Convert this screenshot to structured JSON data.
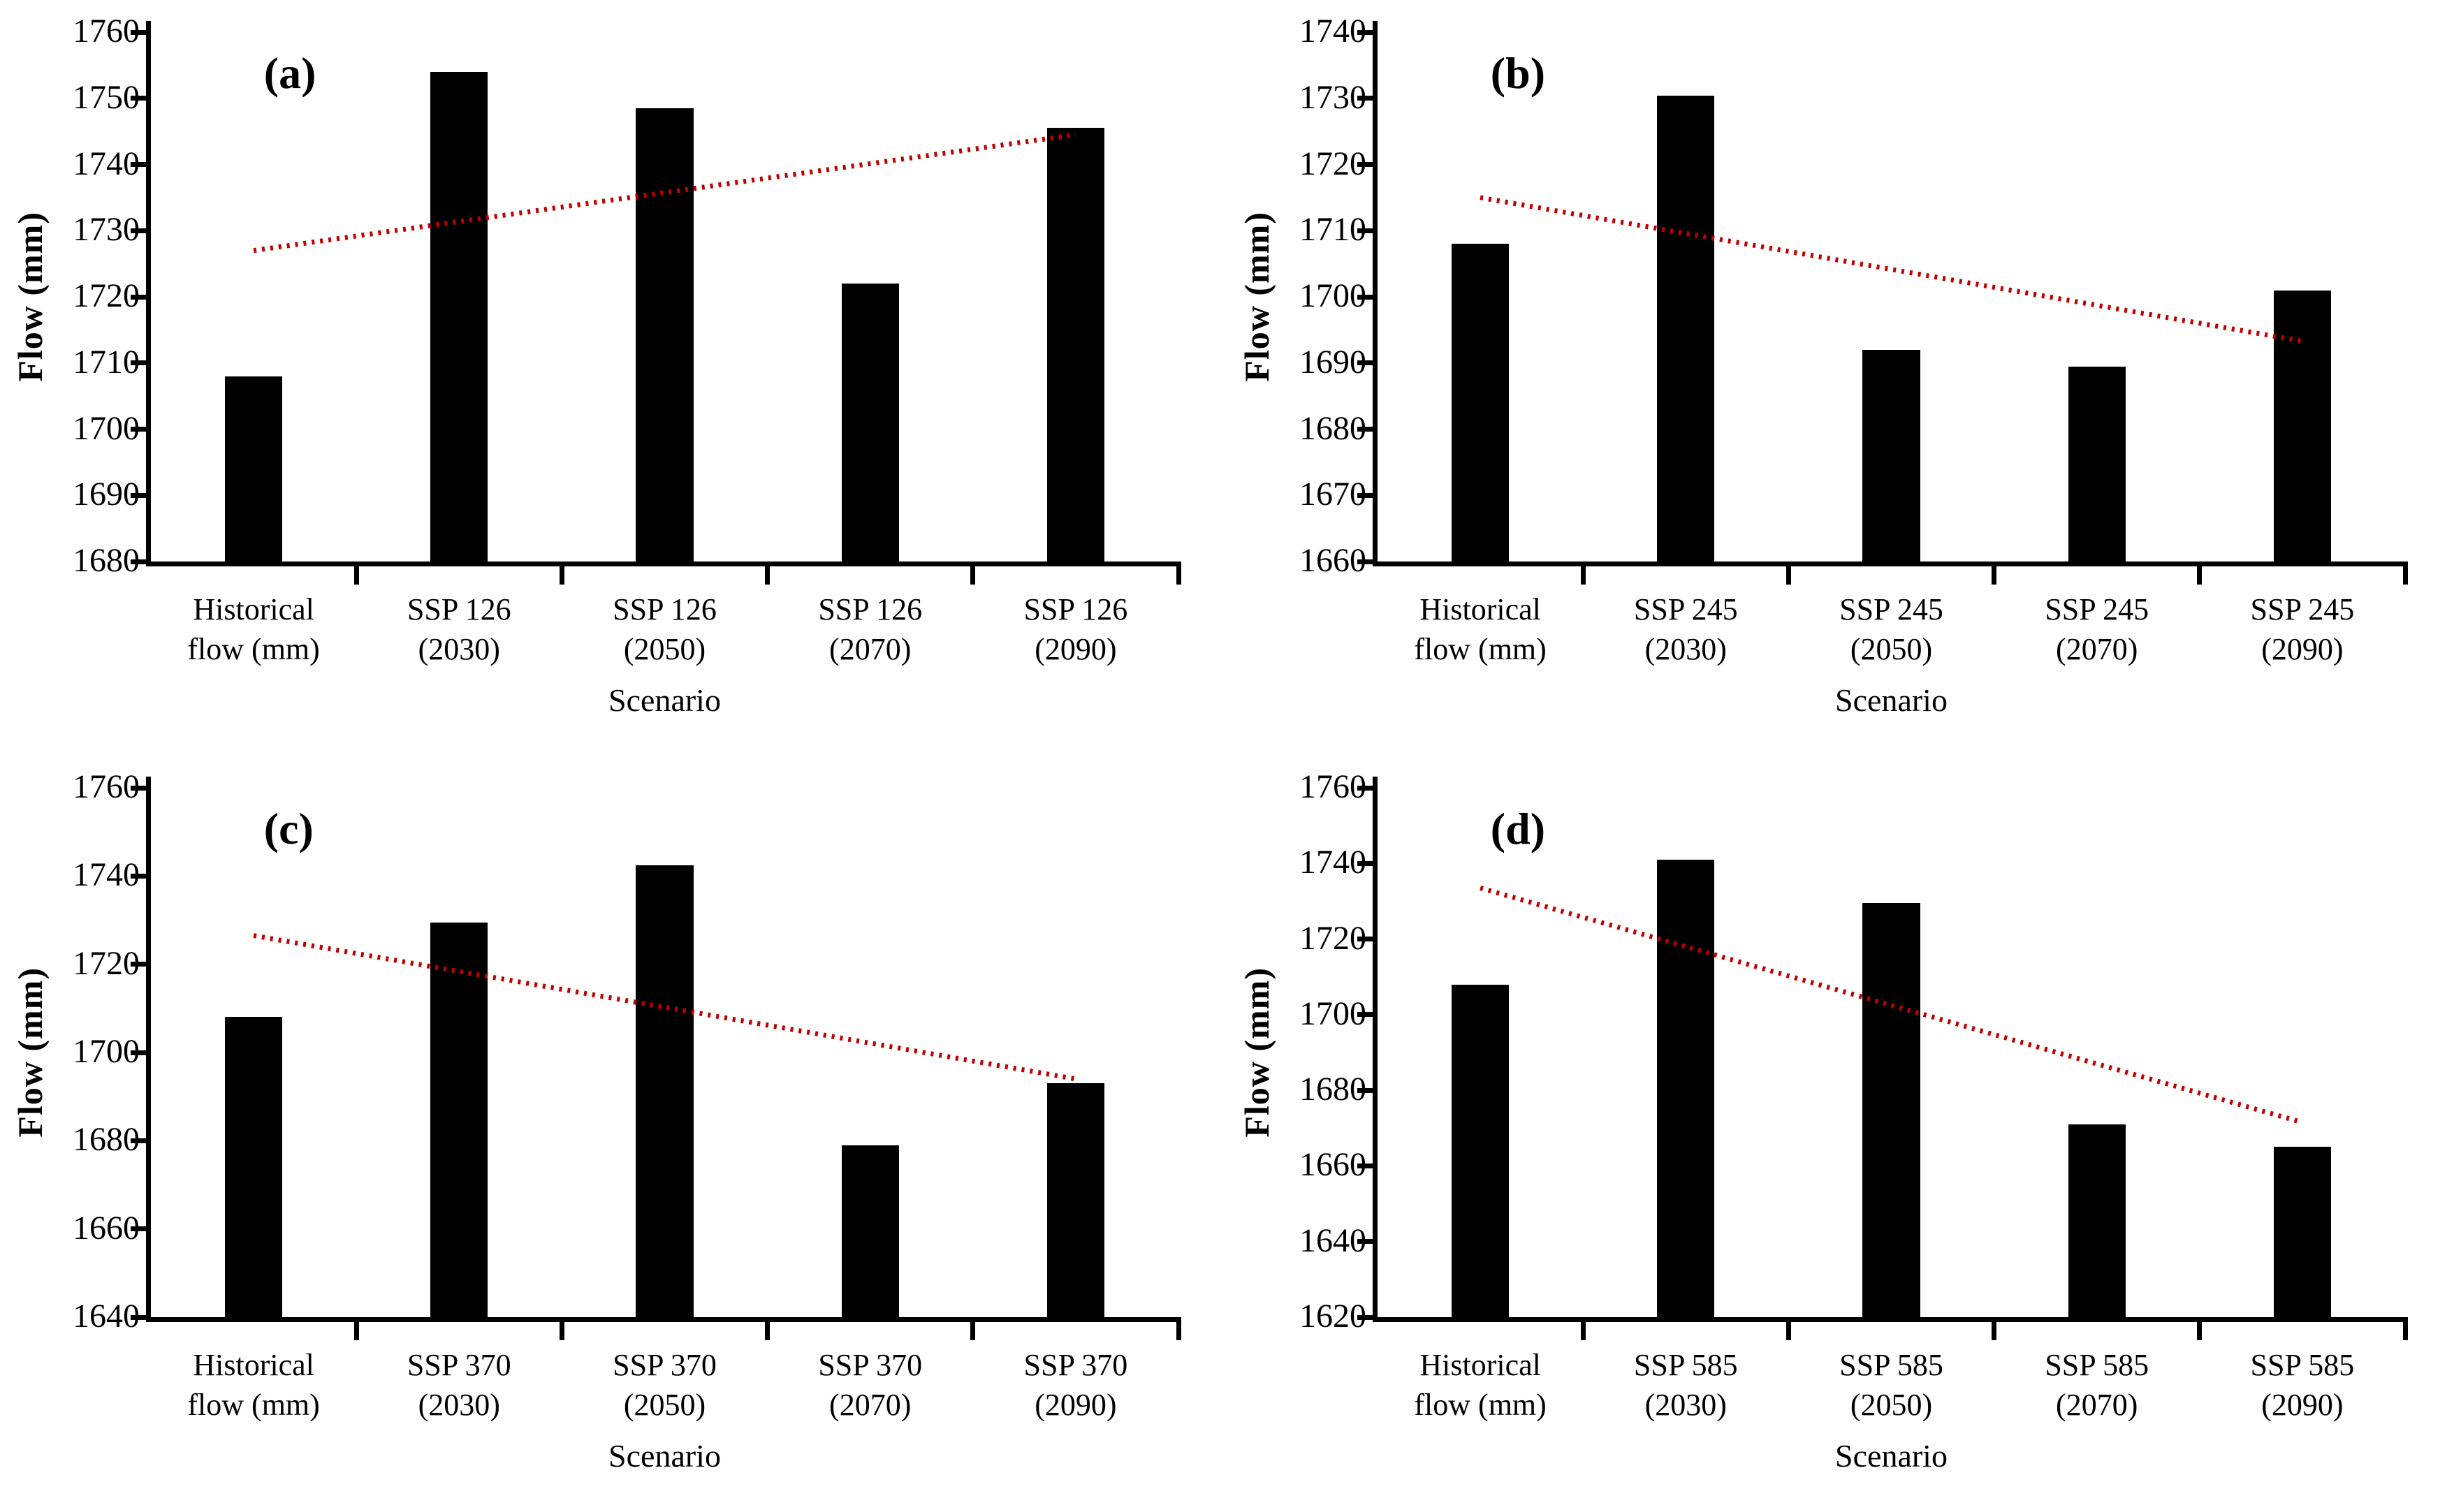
{
  "figure": {
    "background": "#ffffff",
    "bar_color": "#000000",
    "axis_color": "#000000",
    "trend_color": "#c00000",
    "trend_style": "dotted"
  },
  "chart_data": [
    {
      "type": "bar",
      "panel_label": "(a)",
      "xlabel": "Scenario",
      "ylabel": "Flow (mm)",
      "ylim": [
        1680,
        1760
      ],
      "ytick_step": 10,
      "yticks": [
        1760,
        1750,
        1740,
        1730,
        1720,
        1710,
        1700,
        1690,
        1680
      ],
      "categories": [
        "Historical\nflow (mm)",
        "SSP 126\n(2030)",
        "SSP 126\n(2050)",
        "SSP 126\n(2070)",
        "SSP 126\n(2090)"
      ],
      "values": [
        1708,
        1754,
        1748.5,
        1722,
        1745.5
      ],
      "trendline": {
        "start": 1727,
        "end": 1744.5
      },
      "legend": [],
      "grid": false
    },
    {
      "type": "bar",
      "panel_label": "(b)",
      "xlabel": "Scenario",
      "ylabel": "Flow (mm)",
      "ylim": [
        1660,
        1740
      ],
      "ytick_step": 10,
      "yticks": [
        1740,
        1730,
        1720,
        1710,
        1700,
        1690,
        1680,
        1670,
        1660
      ],
      "categories": [
        "Historical\nflow (mm)",
        "SSP 245\n(2030)",
        "SSP 245\n(2050)",
        "SSP 245\n(2070)",
        "SSP 245\n(2090)"
      ],
      "values": [
        1708,
        1730.4,
        1692,
        1689.5,
        1701
      ],
      "trendline": {
        "start": 1715,
        "end": 1693.3
      },
      "legend": [],
      "grid": false
    },
    {
      "type": "bar",
      "panel_label": "(c)",
      "xlabel": "Scenario",
      "ylabel": "Flow (mm)",
      "ylim": [
        1640,
        1760
      ],
      "ytick_step": 20,
      "yticks": [
        1760,
        1740,
        1720,
        1700,
        1680,
        1660,
        1640
      ],
      "categories": [
        "Historical\nflow (mm)",
        "SSP 370\n(2030)",
        "SSP 370\n(2050)",
        "SSP 370\n(2070)",
        "SSP 370\n(2090)"
      ],
      "values": [
        1708,
        1729.5,
        1742.5,
        1679,
        1693
      ],
      "trendline": {
        "start": 1726.5,
        "end": 1694
      },
      "legend": [],
      "grid": false
    },
    {
      "type": "bar",
      "panel_label": "(d)",
      "xlabel": "Scenario",
      "ylabel": "Flow (mm)",
      "ylim": [
        1620,
        1760
      ],
      "ytick_step": 20,
      "yticks": [
        1760,
        1740,
        1720,
        1700,
        1680,
        1660,
        1640,
        1620
      ],
      "categories": [
        "Historical\nflow (mm)",
        "SSP 585\n(2030)",
        "SSP 585\n(2050)",
        "SSP 585\n(2070)",
        "SSP 585\n(2090)"
      ],
      "values": [
        1708,
        1741,
        1729.5,
        1671,
        1665
      ],
      "trendline": {
        "start": 1733.5,
        "end": 1671.5
      },
      "legend": [],
      "grid": false
    }
  ]
}
